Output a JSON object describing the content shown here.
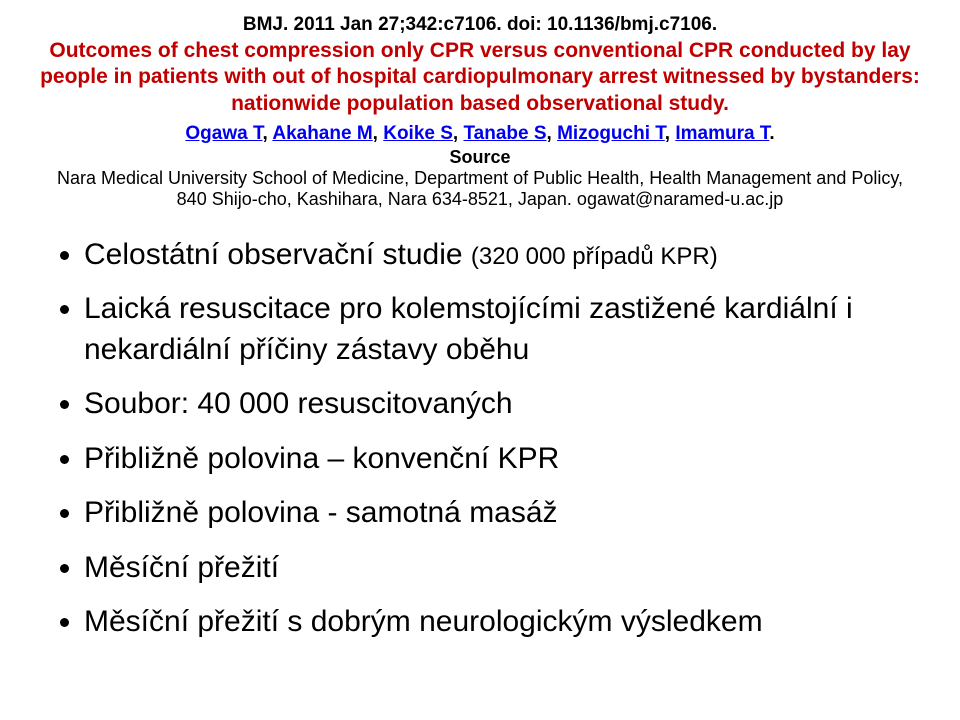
{
  "colors": {
    "background": "#ffffff",
    "text": "#000000",
    "title_red": "#c00000",
    "link_blue": "#0000ee"
  },
  "typography": {
    "base_family": "Arial",
    "citation_fontsize": 19,
    "title_fontsize": 21,
    "authors_fontsize": 19,
    "source_fontsize": 18,
    "bullet_fontsize": 30,
    "bullet_sub_fontsize": 24
  },
  "citation": "BMJ. 2011 Jan 27;342:c7106. doi: 10.1136/bmj.c7106.",
  "title": "Outcomes of chest compression only CPR versus conventional CPR conducted by lay people in patients with out of hospital cardiopulmonary arrest witnessed by bystanders: nationwide population based observational study.",
  "authors": {
    "a1": "Ogawa T",
    "a2": "Akahane M",
    "a3": "Koike S",
    "a4": "Tanabe S",
    "a5": "Mizoguchi T",
    "a6": "Imamura T"
  },
  "source_label": "Source",
  "source_text": "Nara Medical University School of Medicine, Department of Public Health, Health Management and Policy, 840 Shijo-cho, Kashihara, Nara 634-8521, Japan. ogawat@naramed-u.ac.jp",
  "bullets": {
    "b1_main": "Celostátní observační studie ",
    "b1_sub": "(320 000 případů KPR)",
    "b2": "Laická resuscitace pro kolemstojícími zastižené kardiální i nekardiální příčiny zástavy oběhu",
    "b3": "Soubor: 40 000 resuscitovaných",
    "b4": "Přibližně polovina – konvenční KPR",
    "b5": "Přibližně polovina -  samotná masáž",
    "b6": "Měsíční přežití",
    "b7": "Měsíční přežití s dobrým neurologickým výsledkem"
  }
}
